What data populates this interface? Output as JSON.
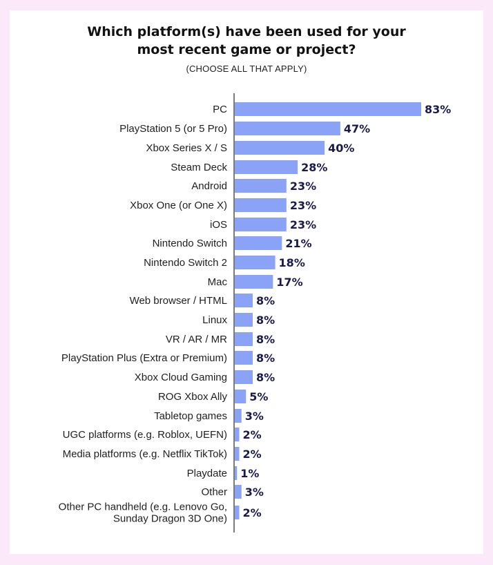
{
  "colors": {
    "background": "#fbe9f9",
    "card": "#ffffff",
    "bar": "#8aa3f7",
    "value_text": "#1a1a4a",
    "label_text": "#1f1f1f"
  },
  "header": {
    "title_line1": "Which platform(s) have been used for your",
    "title_line2": "most recent game or project?",
    "subtitle": "(CHOOSE ALL THAT APPLY)"
  },
  "chart_data": {
    "type": "bar",
    "orientation": "horizontal",
    "title": "Which platform(s) have been used for your most recent game or project?",
    "subtitle": "(CHOOSE ALL THAT APPLY)",
    "xlabel": "",
    "ylabel": "",
    "xlim": [
      0,
      83
    ],
    "grid": false,
    "legend": "none",
    "unit": "%",
    "categories": [
      [
        "PC"
      ],
      [
        "PlayStation 5 (or 5 Pro)"
      ],
      [
        "Xbox Series X / S"
      ],
      [
        "Steam Deck"
      ],
      [
        "Android"
      ],
      [
        "Xbox One (or One X)"
      ],
      [
        "iOS"
      ],
      [
        "Nintendo Switch"
      ],
      [
        "Nintendo Switch 2"
      ],
      [
        "Mac"
      ],
      [
        "Web browser / HTML"
      ],
      [
        "Linux"
      ],
      [
        "VR / AR / MR"
      ],
      [
        "PlayStation Plus (Extra or Premium)"
      ],
      [
        "Xbox Cloud Gaming"
      ],
      [
        "ROG Xbox Ally"
      ],
      [
        "Tabletop games"
      ],
      [
        "UGC platforms (e.g. Roblox, UEFN)"
      ],
      [
        "Media platforms (e.g. Netflix TikTok)"
      ],
      [
        "Playdate"
      ],
      [
        "Other"
      ],
      [
        "Other PC handheld (e.g. Lenovo Go,",
        "Sunday Dragon 3D One)"
      ]
    ],
    "values": [
      83,
      47,
      40,
      28,
      23,
      23,
      23,
      21,
      18,
      17,
      8,
      8,
      8,
      8,
      8,
      5,
      3,
      2,
      2,
      1,
      3,
      2
    ],
    "value_labels": [
      "83%",
      "47%",
      "40%",
      "28%",
      "23%",
      "23%",
      "23%",
      "21%",
      "18%",
      "17%",
      "8%",
      "8%",
      "8%",
      "8%",
      "8%",
      "5%",
      "3%",
      "2%",
      "2%",
      "1%",
      "3%",
      "2%"
    ]
  }
}
